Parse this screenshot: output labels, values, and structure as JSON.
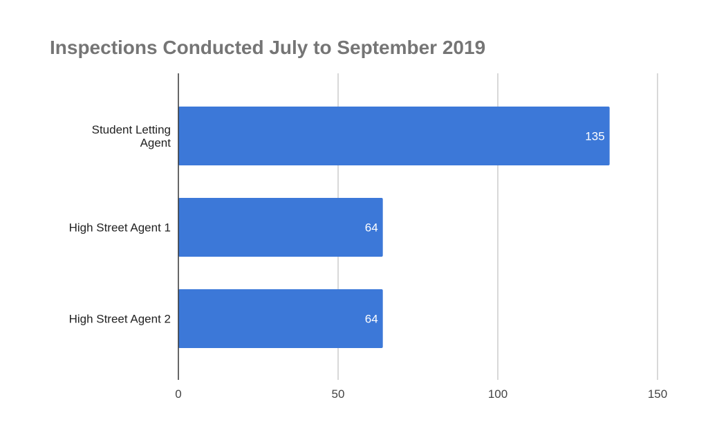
{
  "chart_data": {
    "type": "bar",
    "orientation": "horizontal",
    "title": "Inspections Conducted July to September 2019",
    "categories": [
      [
        "Student Letting",
        "Agent"
      ],
      [
        "High Street Agent 1"
      ],
      [
        "High Street Agent 2"
      ]
    ],
    "values": [
      135,
      64,
      64
    ],
    "data_labels": [
      "135",
      "64",
      "64"
    ],
    "x_ticks": [
      0,
      50,
      100,
      150
    ],
    "x_tick_labels": [
      "0",
      "50",
      "100",
      "150"
    ],
    "xlim": [
      0,
      150
    ],
    "xlabel": "",
    "ylabel": "",
    "grid": true,
    "legend": "none",
    "colors": {
      "bar": "#3c78d8",
      "gridline": "#cccccc",
      "axis": "#333333",
      "title": "#757575"
    }
  }
}
